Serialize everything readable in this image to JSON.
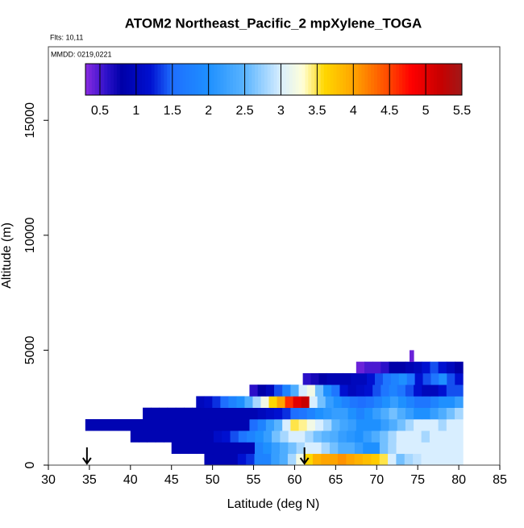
{
  "chart_data": {
    "type": "heatmap",
    "title": "ATOM2 Northeast_Pacific_2 mpXylene_TOGA",
    "subtitle": "Flts: 10,11",
    "annotation": "MMDD: 0219,0221",
    "xlabel": "Latitude (deg N)",
    "ylabel": "Altitude (m)",
    "xlim": [
      30,
      85
    ],
    "xticks": [
      30,
      35,
      40,
      45,
      50,
      55,
      60,
      65,
      70,
      75,
      80,
      85
    ],
    "ylim": [
      0,
      18200
    ],
    "yticks": [
      0,
      5000,
      10000,
      15000
    ],
    "colorbar_lim": [
      0.3,
      5.5
    ],
    "colorbar_ticks": [
      0.5,
      1.0,
      1.5,
      2.0,
      2.5,
      3.0,
      3.5,
      4.0,
      4.5,
      5.0,
      5.5
    ],
    "colorscale": [
      [
        0.3,
        "#8a2be2"
      ],
      [
        0.6,
        "#2a10c8"
      ],
      [
        0.8,
        "#0000a8"
      ],
      [
        1.2,
        "#0010d0"
      ],
      [
        1.5,
        "#1e6fff"
      ],
      [
        2.0,
        "#1e90ff"
      ],
      [
        2.5,
        "#5ab4ff"
      ],
      [
        3.0,
        "#d8eeff"
      ],
      [
        3.3,
        "#ffffd8"
      ],
      [
        3.6,
        "#ffd700"
      ],
      [
        4.0,
        "#ffa500"
      ],
      [
        4.5,
        "#ff4500"
      ],
      [
        4.8,
        "#ff0000"
      ],
      [
        5.2,
        "#c80000"
      ],
      [
        5.5,
        "#a01818"
      ]
    ],
    "rows": [
      {
        "alt": [
          0,
          500
        ],
        "lat_range": [
          49,
          80.5
        ],
        "values": [
          0.9,
          0.9,
          0.9,
          0.9,
          1.2,
          1.3,
          1.8,
          1.8,
          2.2,
          2.4,
          2.8,
          3.2,
          3.6,
          3.9,
          4.0,
          4.0,
          4.1,
          4.0,
          3.9,
          3.8,
          3.7,
          3.5,
          3.0,
          2.6,
          2.8,
          2.9,
          3.0,
          3.0,
          3.0,
          3.0,
          3.0
        ]
      },
      {
        "alt": [
          500,
          1000
        ],
        "lat_range": [
          45,
          80.5
        ],
        "values": [
          0.9,
          0.9,
          0.9,
          0.9,
          0.9,
          0.9,
          0.9,
          0.9,
          0.9,
          0.9,
          1.8,
          2.0,
          2.2,
          2.4,
          2.6,
          2.8,
          3.0,
          3.0,
          2.8,
          2.6,
          2.4,
          2.4,
          2.2,
          2.0,
          2.0,
          2.6,
          2.8,
          3.0,
          3.0,
          3.0,
          3.0,
          3.0,
          3.0,
          3.0,
          3.0
        ]
      },
      {
        "alt": [
          1000,
          1500
        ],
        "lat_range": [
          40,
          80.5
        ],
        "values": [
          0.9,
          0.9,
          0.9,
          0.9,
          0.9,
          0.9,
          0.9,
          0.9,
          0.9,
          0.9,
          1.1,
          1.2,
          1.4,
          1.6,
          1.8,
          2.0,
          2.2,
          2.6,
          2.8,
          3.0,
          3.0,
          2.8,
          2.6,
          2.5,
          2.4,
          2.2,
          2.1,
          2.0,
          2.2,
          2.4,
          2.6,
          2.8,
          3.0,
          3.0,
          3.0,
          2.8,
          3.0,
          3.0,
          3.0,
          3.0
        ]
      },
      {
        "alt": [
          1500,
          2000
        ],
        "lat_range": [
          34.5,
          80.5
        ],
        "values": [
          0.9,
          0.9,
          0.9,
          0.9,
          0.9,
          0.9,
          0.9,
          0.9,
          0.9,
          0.9,
          0.9,
          0.9,
          0.9,
          0.9,
          0.9,
          0.9,
          0.9,
          0.9,
          0.9,
          0.9,
          1.5,
          1.8,
          2.2,
          2.5,
          3.0,
          3.5,
          3.4,
          3.2,
          3.0,
          2.8,
          2.5,
          2.3,
          2.2,
          2.0,
          2.0,
          2.0,
          2.2,
          2.4,
          2.6,
          2.8,
          3.0,
          3.0,
          3.0,
          2.8,
          3.0,
          3.0
        ]
      },
      {
        "alt": [
          2000,
          2500
        ],
        "lat_range": [
          41.5,
          80.5
        ],
        "values": [
          0.9,
          0.9,
          0.9,
          0.9,
          0.9,
          0.9,
          0.9,
          0.9,
          0.9,
          0.9,
          0.9,
          0.9,
          0.9,
          0.9,
          1.0,
          1.1,
          1.2,
          1.3,
          1.5,
          1.6,
          1.8,
          2.0,
          2.1,
          2.2,
          2.2,
          2.0,
          1.8,
          2.0,
          2.2,
          2.4,
          2.6,
          2.4,
          2.2,
          2.0,
          2.0,
          2.2,
          2.4,
          2.6,
          2.8
        ]
      },
      {
        "alt": [
          2500,
          3000
        ],
        "lat_range": [
          48,
          80.5
        ],
        "values": [
          1.0,
          1.1,
          1.3,
          1.5,
          1.8,
          2.0,
          2.4,
          2.8,
          3.2,
          3.6,
          4.0,
          4.6,
          5.0,
          5.2,
          3.0,
          2.6,
          2.2,
          2.0,
          1.8,
          1.6,
          1.5,
          1.6,
          1.8,
          2.0,
          2.2,
          2.0,
          1.8,
          1.6,
          1.6,
          1.8,
          2.0,
          2.0,
          2.2
        ]
      },
      {
        "alt": [
          3000,
          3500
        ],
        "lat_range": [
          54.5,
          80.5
        ],
        "values": [
          0.6,
          0.8,
          1.0,
          1.4,
          1.8,
          2.4,
          3.0,
          3.2,
          2.6,
          2.0,
          1.6,
          1.2,
          1.0,
          1.1,
          1.2,
          1.4,
          1.6,
          1.8,
          1.6,
          1.4,
          1.2,
          1.0,
          1.0,
          1.2,
          1.4,
          1.4
        ]
      },
      {
        "alt": [
          3500,
          4000
        ],
        "lat_range": [
          61,
          80.5
        ],
        "values": [
          0.6,
          0.7,
          0.8,
          0.9,
          0.9,
          0.9,
          1.0,
          1.0,
          1.2,
          1.4,
          1.6,
          1.8,
          2.0,
          1.6,
          1.2,
          1.4,
          1.6,
          2.0,
          1.4,
          1.2
        ]
      },
      {
        "alt": [
          4000,
          4500
        ],
        "lat_range": [
          67.5,
          80.5
        ],
        "values": [
          0.4,
          0.5,
          0.5,
          0.6,
          0.8,
          0.8,
          0.9,
          1.0,
          1.2,
          1.4,
          1.2,
          1.0,
          0.8
        ]
      },
      {
        "alt": [
          4500,
          5000
        ],
        "lat_range": [
          74,
          74.5
        ],
        "values": [
          0.4
        ]
      }
    ],
    "arrows": [
      34.7,
      61.2
    ]
  }
}
